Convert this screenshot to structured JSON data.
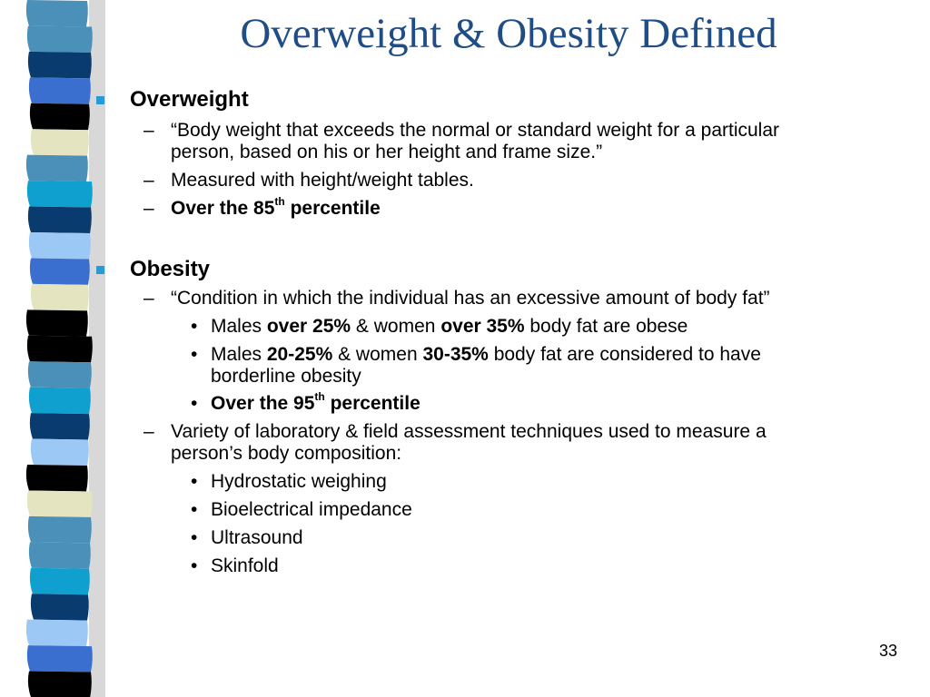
{
  "slide": {
    "title": "Overweight & Obesity Defined",
    "page_number": "33",
    "overweight": {
      "heading": "Overweight",
      "def_line1": "“Body weight that exceeds the normal or standard weight for a particular",
      "def_line2": "person, based on his or her height and frame size.”",
      "measured": "Measured with height/weight tables.",
      "pct_prefix": "Over the 85",
      "pct_sup": "th",
      "pct_suffix": " percentile"
    },
    "obesity": {
      "heading": "Obesity",
      "condition": "“Condition in which the individual has an excessive amount of body fat”",
      "obese_a": "Males ",
      "obese_b": "over 25%",
      "obese_c": " & women ",
      "obese_d": "over 35%",
      "obese_e": " body fat are obese",
      "border_a": "Males ",
      "border_b": "20-25%",
      "border_c": " & women ",
      "border_d": "30-35%",
      "border_e": " body fat are considered to have",
      "border_line2": "borderline obesity",
      "pct_prefix": "Over the 95",
      "pct_sup": "th",
      "pct_suffix": " percentile",
      "variety_line1": "Variety of laboratory & field assessment techniques used to measure a",
      "variety_line2": "person’s body composition:",
      "techniques": [
        "Hydrostatic weighing",
        "Bioelectrical impedance",
        "Ultrasound",
        "Skinfold"
      ]
    },
    "marks": {
      "dash": "–",
      "dot": "•"
    },
    "colors": {
      "title": "#1f4e87",
      "bullet": "#2a9ad6",
      "stripe_palette": [
        "#000000",
        "#4a90b8",
        "#0a3b6e",
        "#3a6fd0",
        "#e4e4c0",
        "#0fa0d0",
        "#9bc8f5",
        "#052a5a"
      ]
    }
  }
}
